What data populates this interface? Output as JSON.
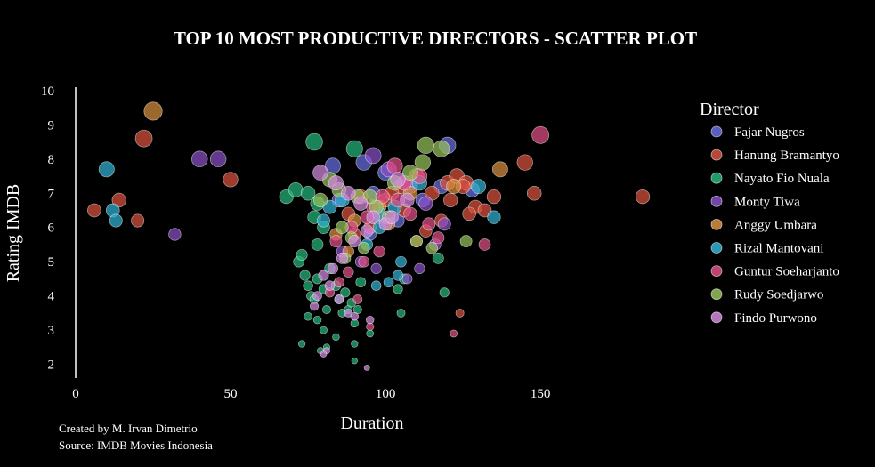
{
  "chart_data": {
    "type": "scatter",
    "title": "TOP 10 MOST PRODUCTIVE DIRECTORS - SCATTER PLOT",
    "xlabel": "Duration",
    "ylabel": "Rating IMDB",
    "xlim": [
      0,
      185
    ],
    "ylim": [
      1.6,
      10.1
    ],
    "x_ticks": [
      0,
      50,
      100,
      150
    ],
    "y_ticks": [
      2,
      3,
      4,
      5,
      6,
      7,
      8,
      9,
      10
    ],
    "grid": false,
    "legend_title": "Director",
    "legend_position": "right",
    "series": [
      {
        "name": "Fajar Nugros",
        "color": "#6a6fe0",
        "points": [
          [
            83,
            7.8
          ],
          [
            93,
            7.9
          ],
          [
            100,
            7.6
          ],
          [
            108,
            7.3
          ],
          [
            118,
            7.2
          ],
          [
            120,
            8.4
          ],
          [
            128,
            7.1
          ],
          [
            85,
            6.8
          ],
          [
            96,
            7.0
          ],
          [
            112,
            6.8
          ],
          [
            104,
            6.2
          ],
          [
            95,
            5.8
          ]
        ]
      },
      {
        "name": "Hanung Bramantyo",
        "color": "#d9533e",
        "points": [
          [
            6,
            6.5
          ],
          [
            14,
            6.8
          ],
          [
            20,
            6.2
          ],
          [
            22,
            8.6
          ],
          [
            50,
            7.4
          ],
          [
            145,
            7.9
          ],
          [
            148,
            7.0
          ],
          [
            183,
            6.9
          ],
          [
            135,
            6.9
          ],
          [
            129,
            6.6
          ],
          [
            127,
            6.4
          ],
          [
            132,
            6.5
          ],
          [
            120,
            7.3
          ],
          [
            123,
            7.5
          ],
          [
            126,
            7.3
          ],
          [
            115,
            7.0
          ],
          [
            110,
            7.5
          ],
          [
            105,
            7.2
          ],
          [
            100,
            6.8
          ],
          [
            102,
            7.0
          ],
          [
            106,
            6.5
          ],
          [
            98,
            6.3
          ],
          [
            95,
            6.0
          ],
          [
            90,
            5.8
          ],
          [
            118,
            6.2
          ],
          [
            113,
            5.9
          ],
          [
            110,
            5.6
          ],
          [
            121,
            6.8
          ],
          [
            125,
            7.2
          ],
          [
            88,
            6.4
          ],
          [
            92,
            6.9
          ],
          [
            124,
            3.5
          ]
        ]
      },
      {
        "name": "Nayato Fio Nuala",
        "color": "#26b57a",
        "points": [
          [
            77,
            8.5
          ],
          [
            90,
            8.3
          ],
          [
            68,
            6.9
          ],
          [
            71,
            7.1
          ],
          [
            75,
            7.0
          ],
          [
            78,
            6.7
          ],
          [
            72,
            5.0
          ],
          [
            73,
            5.2
          ],
          [
            74,
            4.6
          ],
          [
            75,
            4.3
          ],
          [
            76,
            4.0
          ],
          [
            77,
            3.9
          ],
          [
            78,
            4.5
          ],
          [
            80,
            4.2
          ],
          [
            81,
            3.6
          ],
          [
            82,
            4.8
          ],
          [
            84,
            4.3
          ],
          [
            85,
            3.9
          ],
          [
            86,
            3.5
          ],
          [
            87,
            4.1
          ],
          [
            88,
            3.6
          ],
          [
            89,
            3.8
          ],
          [
            90,
            3.2
          ],
          [
            91,
            3.6
          ],
          [
            92,
            4.4
          ],
          [
            75,
            3.4
          ],
          [
            78,
            3.3
          ],
          [
            80,
            3.0
          ],
          [
            84,
            2.8
          ],
          [
            90,
            2.6
          ],
          [
            95,
            2.9
          ],
          [
            73,
            2.6
          ],
          [
            79,
            2.4
          ],
          [
            81,
            2.5
          ],
          [
            90,
            2.1
          ],
          [
            105,
            3.5
          ],
          [
            104,
            4.2
          ],
          [
            106,
            4.5
          ],
          [
            119,
            4.1
          ],
          [
            117,
            5.1
          ],
          [
            78,
            5.5
          ],
          [
            80,
            6.0
          ],
          [
            77,
            6.3
          ]
        ]
      },
      {
        "name": "Monty Tiwa",
        "color": "#8a50c9",
        "points": [
          [
            40,
            8.0
          ],
          [
            46,
            8.0
          ],
          [
            32,
            5.8
          ],
          [
            96,
            8.1
          ],
          [
            101,
            7.7
          ],
          [
            108,
            7.2
          ],
          [
            113,
            6.7
          ],
          [
            119,
            6.1
          ],
          [
            116,
            5.5
          ],
          [
            111,
            4.8
          ],
          [
            107,
            4.5
          ],
          [
            97,
            4.8
          ],
          [
            92,
            5.0
          ],
          [
            86,
            5.3
          ]
        ]
      },
      {
        "name": "Anggy Umbara",
        "color": "#d9903f",
        "points": [
          [
            25,
            9.4
          ],
          [
            137,
            7.7
          ],
          [
            122,
            7.2
          ],
          [
            108,
            7.0
          ],
          [
            98,
            6.6
          ],
          [
            90,
            6.2
          ],
          [
            84,
            5.8
          ],
          [
            88,
            5.3
          ],
          [
            101,
            6.1
          ]
        ]
      },
      {
        "name": "Rizal Mantovani",
        "color": "#2fb3d3",
        "points": [
          [
            10,
            7.7
          ],
          [
            12,
            6.5
          ],
          [
            13,
            6.2
          ],
          [
            135,
            6.3
          ],
          [
            130,
            7.2
          ],
          [
            111,
            7.3
          ],
          [
            103,
            6.6
          ],
          [
            98,
            6.4
          ],
          [
            97,
            4.3
          ],
          [
            101,
            4.4
          ],
          [
            104,
            4.6
          ],
          [
            82,
            6.6
          ],
          [
            80,
            6.2
          ],
          [
            94,
            5.5
          ],
          [
            86,
            6.8
          ],
          [
            98,
            6.0
          ],
          [
            105,
            5.0
          ]
        ]
      },
      {
        "name": "Guntur Soeharjanto",
        "color": "#e04f86",
        "points": [
          [
            150,
            8.7
          ],
          [
            103,
            7.8
          ],
          [
            111,
            7.5
          ],
          [
            106,
            7.3
          ],
          [
            99,
            6.9
          ],
          [
            94,
            6.3
          ],
          [
            89,
            6.0
          ],
          [
            84,
            5.6
          ],
          [
            96,
            6.6
          ],
          [
            104,
            6.8
          ],
          [
            108,
            6.4
          ],
          [
            114,
            6.1
          ],
          [
            117,
            5.7
          ],
          [
            98,
            5.3
          ],
          [
            93,
            5.0
          ],
          [
            88,
            4.7
          ],
          [
            85,
            4.4
          ],
          [
            82,
            4.1
          ],
          [
            91,
            3.9
          ],
          [
            95,
            3.1
          ],
          [
            122,
            2.9
          ],
          [
            132,
            5.5
          ]
        ]
      },
      {
        "name": "Rudy Soedjarwo",
        "color": "#96c25b",
        "points": [
          [
            113,
            8.4
          ],
          [
            118,
            8.3
          ],
          [
            112,
            7.9
          ],
          [
            108,
            7.6
          ],
          [
            103,
            7.3
          ],
          [
            82,
            7.4
          ],
          [
            85,
            7.1
          ],
          [
            91,
            6.9
          ],
          [
            97,
            6.6
          ],
          [
            101,
            6.3
          ],
          [
            86,
            6.0
          ],
          [
            89,
            5.7
          ],
          [
            93,
            5.4
          ],
          [
            87,
            5.1
          ],
          [
            110,
            5.6
          ],
          [
            115,
            5.4
          ],
          [
            126,
            5.6
          ],
          [
            95,
            6.9
          ],
          [
            79,
            6.8
          ]
        ]
      },
      {
        "name": "Findo Purwono",
        "color": "#d48ae0",
        "points": [
          [
            79,
            7.6
          ],
          [
            84,
            7.3
          ],
          [
            88,
            7.0
          ],
          [
            92,
            6.7
          ],
          [
            96,
            6.3
          ],
          [
            100,
            6.1
          ],
          [
            94,
            5.9
          ],
          [
            90,
            5.6
          ],
          [
            86,
            5.1
          ],
          [
            83,
            4.8
          ],
          [
            80,
            4.6
          ],
          [
            82,
            4.3
          ],
          [
            85,
            3.9
          ],
          [
            88,
            3.5
          ],
          [
            90,
            3.4
          ],
          [
            95,
            3.3
          ],
          [
            78,
            4.0
          ],
          [
            77,
            3.7
          ],
          [
            81,
            2.4
          ],
          [
            80,
            2.3
          ],
          [
            94,
            1.9
          ],
          [
            104,
            7.4
          ],
          [
            107,
            6.8
          ],
          [
            102,
            6.3
          ]
        ]
      }
    ]
  },
  "footer": {
    "credit": "Created by M. Irvan Dimetrio",
    "source": "Source: IMDB Movies Indonesia"
  }
}
